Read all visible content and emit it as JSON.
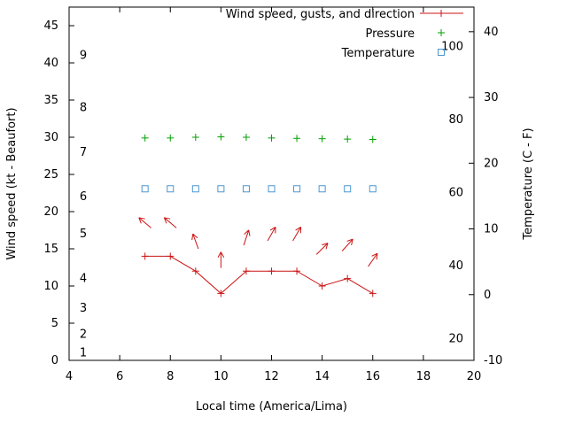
{
  "chart_data": {
    "type": "line",
    "title": "",
    "xlabel": "Local time (America/Lima)",
    "ylabel_left": "Wind speed (kt - Beaufort)",
    "ylabel_right": "Temperature (C - F)",
    "background": "#ffffff",
    "axis_color": "#000000",
    "grid": false,
    "x_range": [
      4,
      20
    ],
    "x_ticks": [
      4,
      6,
      8,
      10,
      12,
      14,
      16,
      18,
      20
    ],
    "y_left_range": [
      0,
      47.5
    ],
    "y_left_ticks": [
      0,
      5,
      10,
      15,
      20,
      25,
      30,
      35,
      40,
      45
    ],
    "beaufort_labels": [
      {
        "label": "1",
        "kt": 1
      },
      {
        "label": "2",
        "kt": 3.5
      },
      {
        "label": "3",
        "kt": 7
      },
      {
        "label": "4",
        "kt": 11
      },
      {
        "label": "5",
        "kt": 17
      },
      {
        "label": "6",
        "kt": 22
      },
      {
        "label": "7",
        "kt": 28
      },
      {
        "label": "8",
        "kt": 34
      },
      {
        "label": "9",
        "kt": 41
      }
    ],
    "y_right_range_c": [
      -10,
      43.75
    ],
    "y_right_ticks_c": [
      -10,
      0,
      10,
      20,
      30,
      40
    ],
    "y_right_inner_ticks_f": [
      20,
      40,
      60,
      80,
      100
    ],
    "x": [
      7,
      8,
      9,
      10,
      11,
      12,
      13,
      14,
      15,
      16
    ],
    "series": [
      {
        "name": "Wind speed, gusts, and direction",
        "type": "line+points+vectors",
        "marker": "plus",
        "color": "#cc1414",
        "values_kt": [
          14,
          14,
          12,
          9,
          12,
          12,
          12,
          10,
          11,
          9
        ],
        "gusts_kt": [
          18.5,
          18.5,
          16,
          13.5,
          16.5,
          17,
          17,
          15,
          15.5,
          13.5
        ],
        "direction_deg_ccw_from_east": [
          140,
          140,
          110,
          90,
          72,
          60,
          60,
          45,
          48,
          55
        ]
      },
      {
        "name": "Pressure",
        "type": "points",
        "marker": "plus",
        "color": "#00a000",
        "note": "no pressure axis shown; points plotted near 30 on the left kt axis",
        "values_kt": [
          29.9,
          29.9,
          30.0,
          30.05,
          30.0,
          29.9,
          29.85,
          29.8,
          29.75,
          29.7
        ]
      },
      {
        "name": "Temperature",
        "type": "points",
        "marker": "open-square",
        "color": "#4b96d1",
        "values_c": [
          16.1,
          16.1,
          16.1,
          16.1,
          16.1,
          16.1,
          16.1,
          16.1,
          16.1,
          16.1
        ]
      }
    ],
    "legend": {
      "position": "top-right-inside",
      "entries": [
        {
          "label": "Wind speed, gusts, and direction",
          "marker": "line-plus",
          "color": "#cc1414"
        },
        {
          "label": "Pressure",
          "marker": "plus",
          "color": "#00a000"
        },
        {
          "label": "Temperature",
          "marker": "open-square",
          "color": "#4b96d1"
        }
      ]
    }
  }
}
